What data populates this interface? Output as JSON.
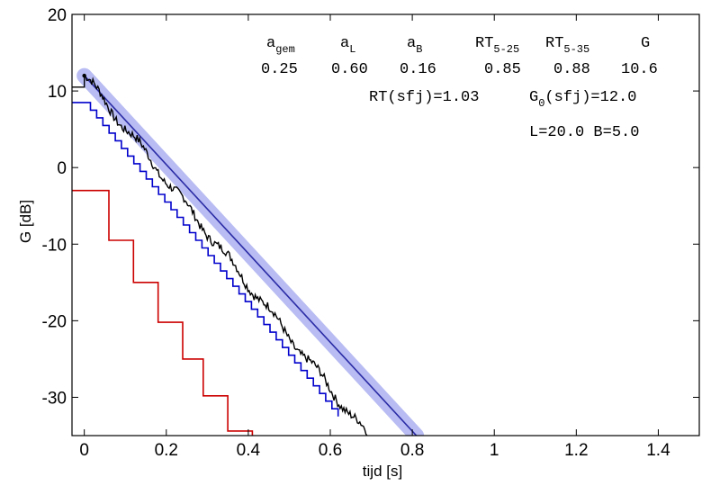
{
  "chart_data": {
    "type": "line",
    "xlabel": "tijd  [s]",
    "ylabel": "G  [dB]",
    "xlim": [
      -0.03,
      1.5
    ],
    "ylim": [
      -35,
      20
    ],
    "xticks": [
      0,
      0.2,
      0.4,
      0.6,
      0.8,
      1,
      1.2,
      1.4
    ],
    "xtick_labels": [
      "0",
      "0.2",
      "0.4",
      "0.6",
      "0.8",
      "1",
      "1.2",
      "1.4"
    ],
    "yticks": [
      20,
      10,
      0,
      -10,
      -20,
      -30
    ],
    "ytick_labels": [
      "20",
      "10",
      "0",
      "-10",
      "-20",
      "-30"
    ],
    "grid": false,
    "series": [
      {
        "color": "#b8bcf2",
        "style": "thick-band",
        "x": [
          0,
          0.81
        ],
        "y": [
          12.0,
          -35
        ]
      },
      {
        "color": "#2b2ba6",
        "style": "line",
        "x": [
          0,
          0.81
        ],
        "y": [
          12.0,
          -35
        ]
      },
      {
        "color": "#000000",
        "style": "noisy-decay",
        "x": [
          0,
          0.69
        ],
        "y": [
          12.0,
          -35
        ]
      },
      {
        "color": "#0000cc",
        "style": "staircase",
        "x_start": -0.03,
        "y_start": 8.5,
        "step_x": 0.0151,
        "step_y": -1.0,
        "x_end": 0.605
      },
      {
        "color": "#cc0000",
        "style": "staircase",
        "steps": [
          {
            "x": -0.03,
            "y": -3
          },
          {
            "x": 0.06,
            "y": -9.5
          },
          {
            "x": 0.12,
            "y": -15.0
          },
          {
            "x": 0.18,
            "y": -20.2
          },
          {
            "x": 0.24,
            "y": -25.0
          },
          {
            "x": 0.29,
            "y": -29.8
          },
          {
            "x": 0.35,
            "y": -34.4
          },
          {
            "x": 0.41,
            "y": -35
          }
        ]
      }
    ],
    "annotations": {
      "header": [
        {
          "main": "a",
          "sub": "gem"
        },
        {
          "main": "a",
          "sub": "L"
        },
        {
          "main": "a",
          "sub": "B"
        },
        {
          "main": "RT",
          "sub": "5-25"
        },
        {
          "main": "RT",
          "sub": "5-35"
        },
        {
          "main": "G",
          "sub": ""
        }
      ],
      "values": [
        "0.25",
        "0.60",
        "0.16",
        "0.85",
        "0.88",
        "10.6"
      ],
      "rt_sfj": "RT(sfj)=1.03",
      "g0_main": "G",
      "g0_sub": "0",
      "g0_rest": "(sfj)=12.0",
      "dims": "L=20.0 B=5.0"
    }
  }
}
